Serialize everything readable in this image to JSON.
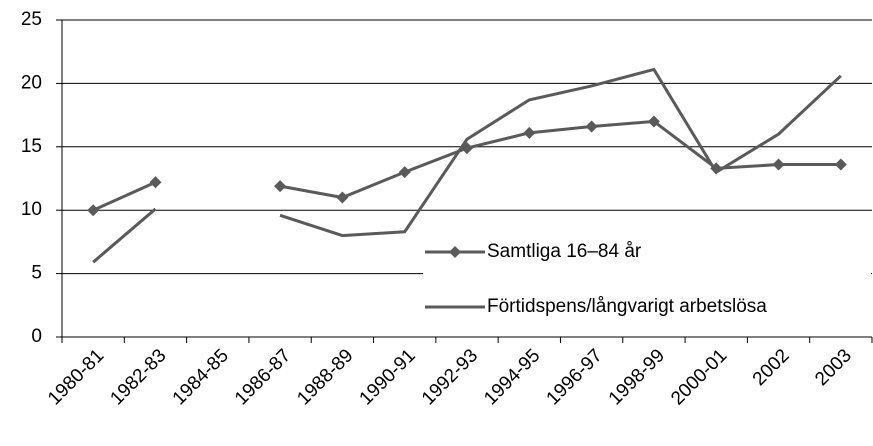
{
  "chart_data": {
    "type": "line",
    "categories": [
      "1980-81",
      "1982-83",
      "1984-85",
      "1986-87",
      "1988-89",
      "1990-91",
      "1992-93",
      "1994-95",
      "1996-97",
      "1998-99",
      "2000-01",
      "2002",
      "2003"
    ],
    "series": [
      {
        "name": "Samtliga 16–84 år",
        "color": "#5a5a5a",
        "marker": "diamond",
        "values": [
          10.0,
          12.2,
          null,
          11.9,
          11.0,
          13.0,
          14.9,
          16.1,
          16.6,
          17.0,
          13.3,
          13.6,
          13.6
        ]
      },
      {
        "name": "Förtidspens/långvarigt arbetslösa",
        "color": "#5a5a5a",
        "marker": "none",
        "values": [
          5.9,
          10.1,
          null,
          9.6,
          8.0,
          8.3,
          15.6,
          18.7,
          19.8,
          21.1,
          13.0,
          16.0,
          20.6
        ]
      }
    ],
    "ylim": [
      0,
      25
    ],
    "yticks": [
      0,
      5,
      10,
      15,
      20,
      25
    ],
    "grid": true,
    "legend": "bottom-right"
  }
}
